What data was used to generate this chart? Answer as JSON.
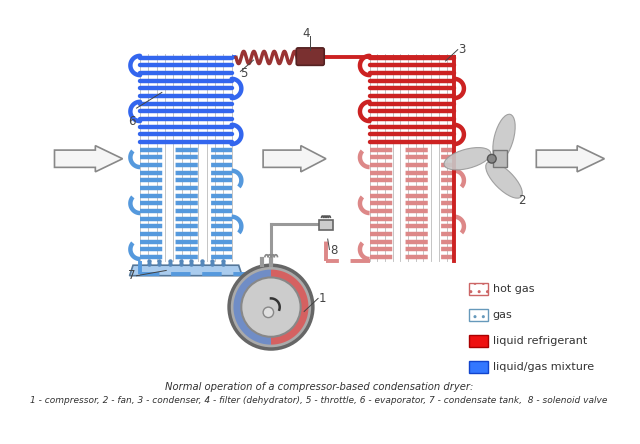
{
  "title_line1": "Normal operation of a compressor-based condensation dryer:",
  "title_line2": "1 - compressor, 2 - fan, 3 - condenser, 4 - filter (dehydrator), 5 - throttle, 6 - evaporator, 7 - condensate tank,  8 - solenoid valve",
  "legend_items": [
    {
      "label": "hot gas",
      "color_fill": "#f5c0c0",
      "color_edge": "#cc6666",
      "solid": false
    },
    {
      "label": "gas",
      "color_fill": "#c0d8f0",
      "color_edge": "#6699bb",
      "solid": false
    },
    {
      "label": "liquid refrigerant",
      "color_fill": "#ee1111",
      "color_edge": "#aa0000",
      "solid": true
    },
    {
      "label": "liquid/gas mixture",
      "color_fill": "#3377ff",
      "color_edge": "#1144cc",
      "solid": true
    }
  ],
  "bg_color": "#ffffff",
  "pipe_blue": "#3366ee",
  "pipe_blue_dot": "#5599dd",
  "pipe_red": "#cc2222",
  "pipe_red_dot": "#dd8888",
  "pipe_gray": "#999999",
  "spring_color": "#993333",
  "filter_color": "#7a3030",
  "arrow_fill": "#f5f5f5",
  "arrow_stroke": "#888888",
  "fin_color": "#bbbbbb",
  "water_color": "#88aadd",
  "comp_body": "#aaaaaa",
  "comp_ring": "#888888",
  "comp_blue": "#6688cc",
  "comp_red": "#dd5555",
  "comp_gray": "#cccccc",
  "label_color": "#444444",
  "sol_color": "#aaaaaa"
}
